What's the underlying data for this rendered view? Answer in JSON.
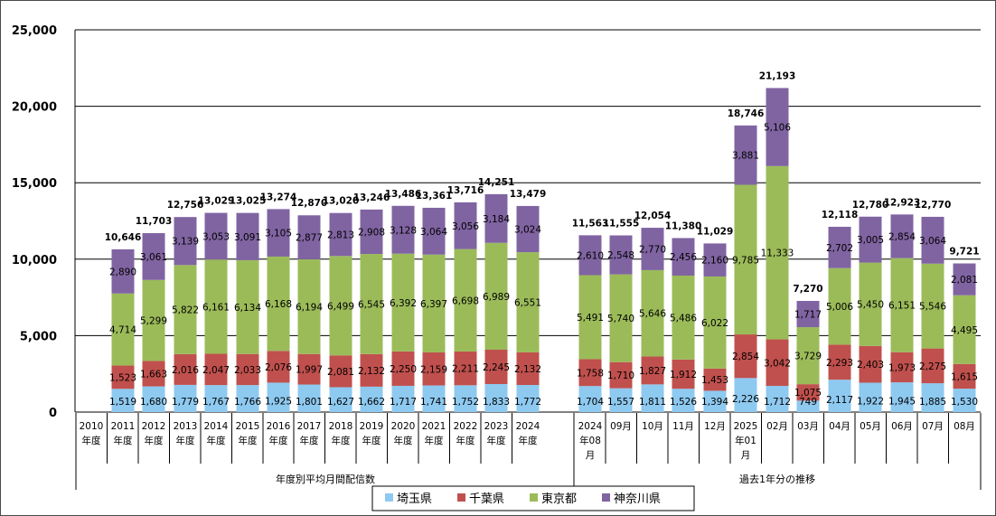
{
  "chart_data": {
    "type": "bar",
    "stacked": true,
    "ylim": [
      0,
      25000
    ],
    "y_ticks": [
      "0",
      "5,000",
      "10,000",
      "15,000",
      "20,000",
      "25,000"
    ],
    "y_tick_values": [
      0,
      5000,
      10000,
      15000,
      20000,
      25000
    ],
    "grid": true,
    "legend_position": "bottom",
    "groups": [
      {
        "label": "年度別平均月間配信数",
        "categories": [
          "2010 年度",
          "2011 年度",
          "2012 年度",
          "2013 年度",
          "2014 年度",
          "2015 年度",
          "2016 年度",
          "2017 年度",
          "2018 年度",
          "2019 年度",
          "2020 年度",
          "2021 年度",
          "2022 年度",
          "2023 年度",
          "2024 年度"
        ]
      },
      {
        "label": "過去1年分の推移",
        "categories": [
          "2024 年08 月",
          "09月",
          "10月",
          "11月",
          "12月",
          "2025 年01 月",
          "02月",
          "03月",
          "04月",
          "05月",
          "06月",
          "07月",
          "08月"
        ]
      }
    ],
    "categories": [
      [
        "2010",
        "年度"
      ],
      [
        "2011",
        "年度"
      ],
      [
        "2012",
        "年度"
      ],
      [
        "2013",
        "年度"
      ],
      [
        "2014",
        "年度"
      ],
      [
        "2015",
        "年度"
      ],
      [
        "2016",
        "年度"
      ],
      [
        "2017",
        "年度"
      ],
      [
        "2018",
        "年度"
      ],
      [
        "2019",
        "年度"
      ],
      [
        "2020",
        "年度"
      ],
      [
        "2021",
        "年度"
      ],
      [
        "2022",
        "年度"
      ],
      [
        "2023",
        "年度"
      ],
      [
        "2024",
        "年度"
      ],
      [
        "2024",
        "年08",
        "月"
      ],
      [
        "09月"
      ],
      [
        "10月"
      ],
      [
        "11月"
      ],
      [
        "12月"
      ],
      [
        "2025",
        "年01",
        "月"
      ],
      [
        "02月"
      ],
      [
        "03月"
      ],
      [
        "04月"
      ],
      [
        "05月"
      ],
      [
        "06月"
      ],
      [
        "07月"
      ],
      [
        "08月"
      ]
    ],
    "series": [
      {
        "name": "埼玉県",
        "color": "#8ec9f0",
        "values": [
          null,
          1519,
          1680,
          1779,
          1767,
          1766,
          1925,
          1801,
          1627,
          1662,
          1717,
          1741,
          1752,
          1833,
          1772,
          1704,
          1557,
          1811,
          1526,
          1394,
          2226,
          1712,
          749,
          2117,
          1922,
          1945,
          1885,
          1530
        ]
      },
      {
        "name": "千葉県",
        "color": "#c0504d",
        "values": [
          null,
          1523,
          1663,
          2016,
          2047,
          2033,
          2076,
          1997,
          2081,
          2132,
          2250,
          2159,
          2211,
          2245,
          2132,
          1758,
          1710,
          1827,
          1912,
          1453,
          2854,
          3042,
          1075,
          2293,
          2403,
          1973,
          2275,
          1615
        ]
      },
      {
        "name": "東京都",
        "color": "#9bbb59",
        "values": [
          null,
          4714,
          5299,
          5822,
          6161,
          6134,
          6168,
          6194,
          6499,
          6545,
          6392,
          6397,
          6698,
          6989,
          6551,
          5491,
          5740,
          5646,
          5486,
          6022,
          9785,
          11333,
          3729,
          5006,
          5450,
          6151,
          5546,
          4495
        ]
      },
      {
        "name": "神奈川県",
        "color": "#8064a2",
        "values": [
          null,
          2890,
          3061,
          3139,
          3053,
          3091,
          3105,
          2877,
          2813,
          2908,
          3128,
          3064,
          3056,
          3184,
          3024,
          2610,
          2548,
          2770,
          2456,
          2160,
          3881,
          5106,
          1717,
          2702,
          3005,
          2854,
          3064,
          2081
        ]
      }
    ],
    "totals": [
      null,
      10646,
      11703,
      12756,
      13029,
      13025,
      13274,
      12870,
      13020,
      13246,
      13486,
      13361,
      13716,
      14251,
      13479,
      11563,
      11555,
      12054,
      11380,
      11029,
      18746,
      21193,
      7270,
      12118,
      12780,
      12923,
      12770,
      9721
    ]
  }
}
